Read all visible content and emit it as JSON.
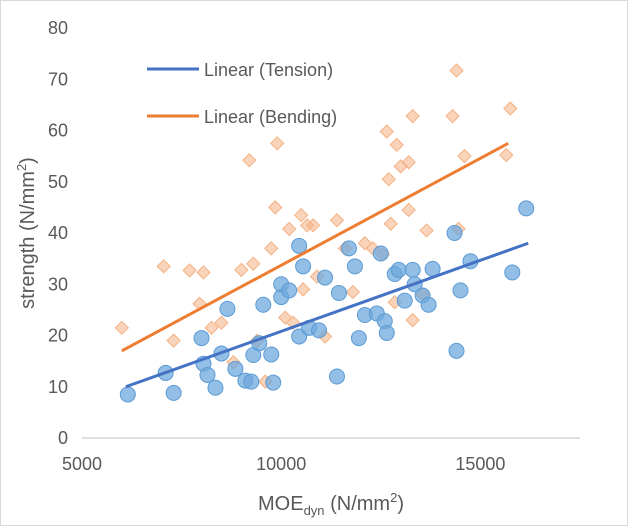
{
  "chart_data": {
    "type": "scatter",
    "xlabel": {
      "main": "MOE",
      "sub": "dyn",
      "unit_pre": " (N/mm",
      "unit_sup": "2",
      "unit_post": ")"
    },
    "ylabel": {
      "main": "strength (N/mm",
      "sup": "2",
      "post": ")"
    },
    "xlim": [
      5000,
      17500
    ],
    "ylim": [
      0,
      80
    ],
    "x_ticks": [
      5000,
      10000,
      15000
    ],
    "y_ticks": [
      0,
      10,
      20,
      30,
      40,
      50,
      60,
      70,
      80
    ],
    "grid": false,
    "legend_position": "top-left inside plot",
    "legend": [
      {
        "label": "Linear (Tension)",
        "color": "#4472c4"
      },
      {
        "label": "Linear (Bending)",
        "color": "#ed7d31"
      }
    ],
    "trendlines": [
      {
        "name": "Linear (Tension)",
        "color": "#4472c4",
        "x": [
          6100,
          16200
        ],
        "y": [
          10.0,
          38.0
        ]
      },
      {
        "name": "Linear (Bending)",
        "color": "#ed7d31",
        "x": [
          6000,
          15700
        ],
        "y": [
          17.0,
          57.5
        ]
      }
    ],
    "series": [
      {
        "role": "bending-points",
        "marker": "diamond",
        "color": "#f4b183",
        "points": [
          [
            6000,
            21.5
          ],
          [
            7050,
            33.5
          ],
          [
            7300,
            19
          ],
          [
            7700,
            32.7
          ],
          [
            7950,
            26.2
          ],
          [
            8050,
            32.3
          ],
          [
            8250,
            21.5
          ],
          [
            8500,
            22.5
          ],
          [
            8800,
            14.8
          ],
          [
            9000,
            32.8
          ],
          [
            9200,
            54.2
          ],
          [
            9300,
            34
          ],
          [
            9400,
            19
          ],
          [
            9600,
            11
          ],
          [
            9750,
            37
          ],
          [
            9850,
            45
          ],
          [
            9900,
            57.5
          ],
          [
            10100,
            23.5
          ],
          [
            10200,
            40.8
          ],
          [
            10300,
            22.5
          ],
          [
            10500,
            43.5
          ],
          [
            10550,
            29
          ],
          [
            10650,
            41.5
          ],
          [
            10800,
            41.5
          ],
          [
            10900,
            31.5
          ],
          [
            11100,
            19.8
          ],
          [
            11400,
            42.5
          ],
          [
            11600,
            37
          ],
          [
            11800,
            28.5
          ],
          [
            12100,
            38
          ],
          [
            12300,
            37
          ],
          [
            12550,
            35.8
          ],
          [
            12650,
            59.8
          ],
          [
            12700,
            50.5
          ],
          [
            12750,
            41.8
          ],
          [
            12850,
            26.5
          ],
          [
            12900,
            57.2
          ],
          [
            13000,
            53
          ],
          [
            13200,
            53.8
          ],
          [
            13200,
            44.5
          ],
          [
            13300,
            23
          ],
          [
            13300,
            62.8
          ],
          [
            13550,
            28
          ],
          [
            13650,
            40.5
          ],
          [
            14300,
            62.8
          ],
          [
            14400,
            71.7
          ],
          [
            14450,
            40.8
          ],
          [
            14600,
            55
          ],
          [
            15650,
            55.2
          ],
          [
            15750,
            64.3
          ]
        ]
      },
      {
        "role": "tension-points",
        "marker": "circle",
        "color": "#6fa8dc",
        "points": [
          [
            6150,
            8.5
          ],
          [
            7100,
            12.7
          ],
          [
            7300,
            8.8
          ],
          [
            8000,
            19.5
          ],
          [
            8050,
            14.5
          ],
          [
            8150,
            12.3
          ],
          [
            8350,
            9.8
          ],
          [
            8500,
            16.5
          ],
          [
            8650,
            25.2
          ],
          [
            8850,
            13.5
          ],
          [
            9100,
            11.2
          ],
          [
            9250,
            11
          ],
          [
            9300,
            16.2
          ],
          [
            9450,
            18.5
          ],
          [
            9550,
            26
          ],
          [
            9750,
            16.3
          ],
          [
            9800,
            10.8
          ],
          [
            10000,
            27.5
          ],
          [
            10000,
            30
          ],
          [
            10200,
            28.8
          ],
          [
            10450,
            37.5
          ],
          [
            10450,
            19.8
          ],
          [
            10550,
            33.5
          ],
          [
            10700,
            21.5
          ],
          [
            10950,
            21
          ],
          [
            11100,
            31.3
          ],
          [
            11400,
            12
          ],
          [
            11450,
            28.3
          ],
          [
            11700,
            37
          ],
          [
            11850,
            33.5
          ],
          [
            11950,
            19.5
          ],
          [
            12100,
            24
          ],
          [
            12400,
            24.3
          ],
          [
            12500,
            36
          ],
          [
            12600,
            22.8
          ],
          [
            12650,
            20.5
          ],
          [
            12850,
            32
          ],
          [
            12950,
            32.8
          ],
          [
            13100,
            26.8
          ],
          [
            13300,
            32.8
          ],
          [
            13350,
            30
          ],
          [
            13550,
            27.8
          ],
          [
            13700,
            26
          ],
          [
            13800,
            33
          ],
          [
            14350,
            40
          ],
          [
            14400,
            17
          ],
          [
            14500,
            28.8
          ],
          [
            14750,
            34.5
          ],
          [
            15800,
            32.3
          ],
          [
            16150,
            44.8
          ]
        ]
      }
    ]
  }
}
